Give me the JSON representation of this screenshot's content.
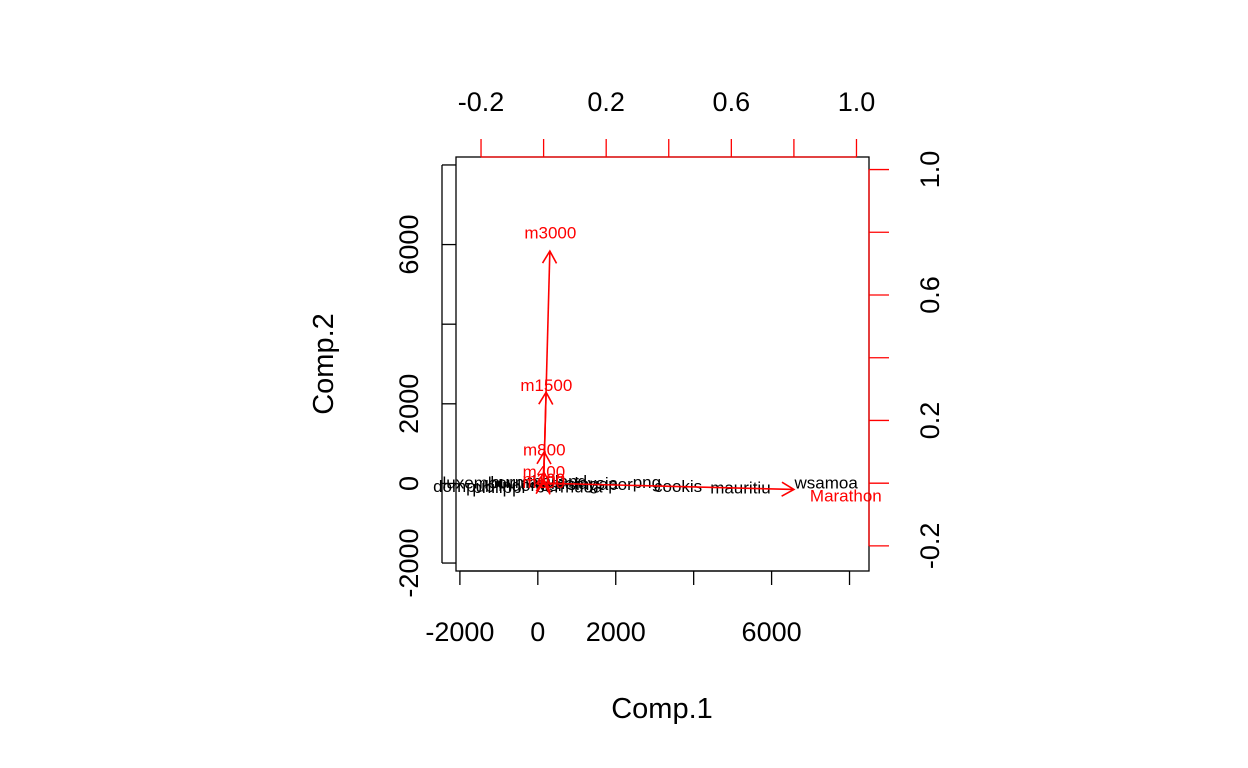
{
  "chart_data": {
    "type": "scatter",
    "subtype": "biplot",
    "xlabel": "Comp.1",
    "ylabel": "Comp.2",
    "xlim": [
      -2100,
      8500
    ],
    "ylim": [
      -2200,
      8200
    ],
    "xticks": [
      -2000,
      0,
      2000,
      6000
    ],
    "yticks": [
      -2000,
      2000,
      6000
    ],
    "yticks_extra": [
      0
    ],
    "xticks_minor": [
      4000,
      8000
    ],
    "yticks_minor": [
      4000,
      8000
    ],
    "top_axis": {
      "lim": [
        -0.28,
        1.04
      ],
      "ticks": [
        -0.2,
        0.0,
        0.2,
        0.4,
        0.6,
        0.8,
        1.0
      ],
      "labels": [
        "-0.2",
        "",
        "0.2",
        "",
        "0.6",
        "",
        "1.0"
      ],
      "color": "#ff0000"
    },
    "right_axis": {
      "lim": [
        -0.28,
        1.04
      ],
      "ticks": [
        -0.2,
        0.0,
        0.2,
        0.4,
        0.6,
        0.8,
        1.0
      ],
      "labels": [
        "-0.2",
        "",
        "0.2",
        "",
        "0.6",
        "",
        "1.0"
      ],
      "color": "#ff0000"
    },
    "scores_color": "#000000",
    "scores": [
      {
        "label": "wsamoa",
        "x": 7400,
        "y": 20
      },
      {
        "label": "mauritiu",
        "x": 5200,
        "y": -100
      },
      {
        "label": "cookis",
        "x": 3600,
        "y": -60
      },
      {
        "label": "png",
        "x": 2800,
        "y": 30
      },
      {
        "label": "singapor",
        "x": 1600,
        "y": -20
      },
      {
        "label": "malaysia",
        "x": 1200,
        "y": 10
      },
      {
        "label": "bermuda",
        "x": 800,
        "y": -80
      },
      {
        "label": "thailand",
        "x": 500,
        "y": 60
      },
      {
        "label": "indonesi",
        "x": -200,
        "y": -40
      },
      {
        "label": "burma",
        "x": -600,
        "y": 40
      },
      {
        "label": "philippi",
        "x": -1000,
        "y": -90
      },
      {
        "label": "luxembou",
        "x": -1500,
        "y": 20
      },
      {
        "label": "dompub",
        "x": -1900,
        "y": -70
      }
    ],
    "loadings_color": "#ff0000",
    "loadings": [
      {
        "label": "m3000",
        "x": 0.02,
        "y": 0.74
      },
      {
        "label": "m1500",
        "x": 0.008,
        "y": 0.29
      },
      {
        "label": "m800",
        "x": 0.002,
        "y": 0.1
      },
      {
        "label": "m400",
        "x": 0.001,
        "y": 0.035
      },
      {
        "label": "m200",
        "x": 0.0005,
        "y": 0.012
      },
      {
        "label": "m100",
        "x": 0.0002,
        "y": 0.004
      },
      {
        "label": "Marathon",
        "x": 0.8,
        "y": -0.02
      }
    ]
  }
}
